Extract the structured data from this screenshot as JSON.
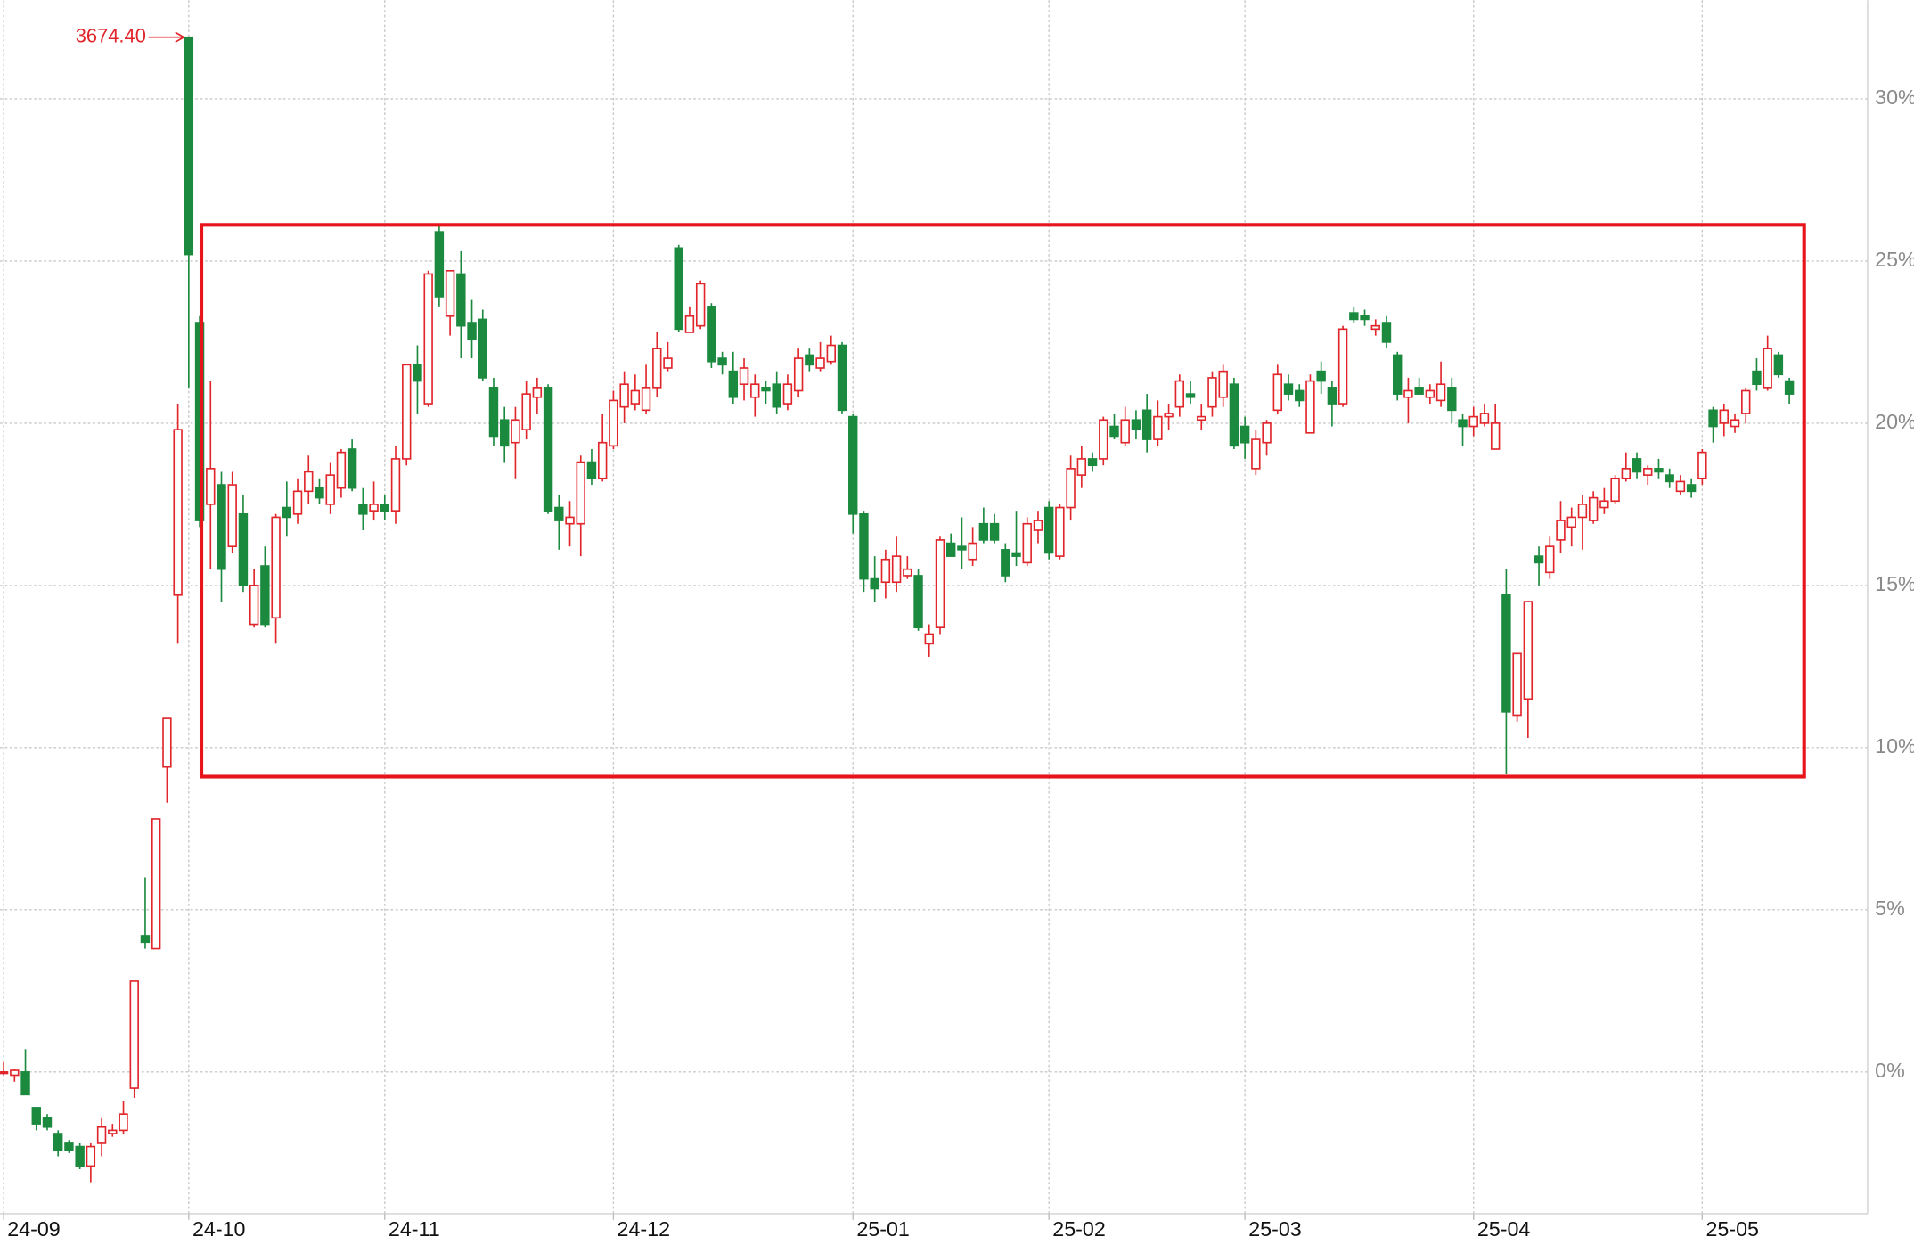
{
  "chart_data": {
    "type": "candlestick",
    "up_color": "#e0262b",
    "down_color": "#1b8a3e",
    "grid": true,
    "ylim": [
      -4.37,
      33.04
    ],
    "yticks": [
      {
        "value": 0,
        "label": "0%"
      },
      {
        "value": 5,
        "label": "5%"
      },
      {
        "value": 10,
        "label": "10%"
      },
      {
        "value": 15,
        "label": "15%"
      },
      {
        "value": 20,
        "label": "20%"
      },
      {
        "value": 25,
        "label": "25%"
      },
      {
        "value": 30,
        "label": "30%"
      }
    ],
    "annotations": [
      {
        "text": "3674.40"
      }
    ],
    "categories": [
      "24-09",
      null,
      null,
      null,
      null,
      null,
      null,
      null,
      null,
      null,
      null,
      null,
      null,
      null,
      null,
      null,
      null,
      "24-10",
      null,
      null,
      null,
      null,
      null,
      null,
      null,
      null,
      null,
      null,
      null,
      null,
      null,
      null,
      null,
      null,
      null,
      "24-11",
      null,
      null,
      null,
      null,
      null,
      null,
      null,
      null,
      null,
      null,
      null,
      null,
      null,
      null,
      null,
      null,
      null,
      null,
      null,
      null,
      "24-12",
      null,
      null,
      null,
      null,
      null,
      null,
      null,
      null,
      null,
      null,
      null,
      null,
      null,
      null,
      null,
      null,
      null,
      null,
      null,
      null,
      null,
      "25-01",
      null,
      null,
      null,
      null,
      null,
      null,
      null,
      null,
      null,
      null,
      null,
      null,
      null,
      null,
      null,
      null,
      null,
      "25-02",
      null,
      null,
      null,
      null,
      null,
      null,
      null,
      null,
      null,
      null,
      null,
      null,
      null,
      null,
      null,
      null,
      null,
      "25-03",
      null,
      null,
      null,
      null,
      null,
      null,
      null,
      null,
      null,
      null,
      null,
      null,
      null,
      null,
      null,
      null,
      null,
      null,
      null,
      null,
      "25-04",
      null,
      null,
      null,
      null,
      null,
      null,
      null,
      null,
      null,
      null,
      null,
      null,
      null,
      null,
      null,
      null,
      null,
      null,
      null,
      null,
      "25-05",
      null,
      null,
      null,
      null,
      null,
      null,
      null,
      null
    ],
    "open": [
      0,
      -0.1,
      0,
      -1.1,
      -1.4,
      -1.9,
      -2.2,
      -2.3,
      -2.9,
      -2.2,
      -1.9,
      -1.8,
      -0.5,
      4.2,
      3.8,
      9.4,
      14.7,
      31.9,
      23.1,
      17.5,
      18.1,
      16.2,
      17.2,
      13.8,
      15.6,
      14.0,
      17.4,
      17.2,
      17.9,
      18.0,
      17.5,
      18.0,
      19.2,
      17.5,
      17.3,
      17.5,
      17.3,
      18.9,
      21.8,
      20.6,
      25.9,
      23.3,
      24.6,
      23.1,
      23.2,
      21.1,
      20.1,
      19.4,
      19.8,
      20.8,
      21.1,
      17.4,
      16.9,
      16.9,
      18.8,
      18.3,
      19.3,
      20.5,
      20.6,
      20.4,
      21.1,
      21.7,
      25.4,
      22.8,
      23.0,
      23.6,
      22.0,
      21.6,
      21.2,
      20.8,
      21.1,
      21.2,
      20.6,
      21.0,
      22.1,
      21.7,
      21.9,
      22.4,
      20.2,
      17.2,
      15.2,
      15.1,
      15.1,
      15.3,
      15.3,
      13.2,
      13.7,
      16.3,
      16.2,
      15.8,
      16.9,
      16.9,
      16.1,
      16.0,
      15.7,
      16.7,
      17.4,
      15.9,
      17.4,
      18.4,
      18.9,
      18.9,
      19.9,
      19.4,
      20.1,
      20.4,
      19.5,
      20.2,
      20.5,
      20.9,
      20.1,
      20.5,
      20.8,
      21.2,
      19.9,
      18.6,
      19.4,
      20.4,
      21.2,
      21.0,
      19.7,
      21.6,
      21.1,
      20.6,
      23.4,
      23.3,
      22.9,
      23.1,
      22.1,
      20.8,
      21.1,
      20.8,
      20.7,
      21.1,
      20.1,
      19.9,
      20.0,
      19.2,
      14.7,
      11.0,
      11.5,
      15.9,
      15.4,
      16.4,
      16.8,
      17.1,
      17.0,
      17.4,
      17.6,
      18.3,
      18.9,
      18.4,
      18.6,
      18.4,
      17.9,
      18.1,
      18.3,
      20.4,
      20.0,
      19.9,
      20.3,
      21.6,
      21.1,
      22.1,
      21.3
    ],
    "high": [
      0.3,
      0.1,
      0.7,
      -1.1,
      -1.3,
      -1.8,
      -2.1,
      -2.2,
      -2.2,
      -1.4,
      -1.6,
      -0.9,
      2.8,
      6.0,
      7.8,
      10.9,
      20.6,
      31.9,
      23.3,
      21.3,
      18.5,
      18.5,
      17.8,
      15.5,
      16.2,
      17.2,
      18.2,
      18.3,
      19.0,
      18.3,
      18.8,
      19.2,
      19.5,
      18.0,
      18.2,
      17.8,
      19.3,
      21.8,
      22.4,
      24.7,
      26.1,
      24.7,
      25.3,
      23.8,
      23.5,
      21.4,
      20.5,
      20.5,
      21.3,
      21.4,
      21.2,
      17.8,
      17.6,
      19.0,
      19.2,
      20.3,
      21.0,
      21.6,
      21.5,
      21.8,
      22.8,
      22.5,
      25.5,
      23.6,
      24.4,
      23.7,
      22.2,
      22.2,
      22.0,
      21.5,
      21.3,
      21.6,
      21.5,
      22.3,
      22.3,
      22.5,
      22.7,
      22.5,
      20.3,
      17.3,
      15.9,
      16.1,
      16.5,
      15.9,
      15.5,
      13.8,
      16.5,
      16.6,
      17.1,
      16.8,
      17.4,
      17.2,
      16.3,
      17.3,
      17.1,
      17.3,
      17.6,
      17.5,
      19.0,
      19.3,
      19.1,
      20.2,
      20.3,
      20.5,
      20.4,
      20.9,
      20.7,
      20.6,
      21.5,
      21.3,
      20.6,
      21.6,
      21.8,
      21.4,
      20.2,
      19.8,
      20.1,
      21.8,
      21.5,
      21.2,
      21.5,
      21.9,
      21.3,
      23.0,
      23.6,
      23.5,
      23.2,
      23.3,
      22.2,
      21.4,
      21.4,
      21.2,
      21.9,
      21.4,
      20.3,
      20.5,
      20.6,
      20.6,
      15.5,
      12.9,
      14.5,
      16.2,
      16.5,
      17.6,
      17.4,
      17.8,
      17.9,
      18.0,
      18.4,
      19.1,
      19.1,
      18.7,
      18.9,
      18.6,
      18.4,
      18.3,
      19.2,
      20.5,
      20.6,
      20.3,
      21.1,
      22.0,
      22.7,
      22.2,
      21.4
    ],
    "low": [
      -0.1,
      -0.3,
      -0.7,
      -1.8,
      -1.8,
      -2.6,
      -2.5,
      -3.0,
      -3.4,
      -2.6,
      -2.0,
      -1.9,
      -0.8,
      3.8,
      3.8,
      8.3,
      13.2,
      21.1,
      16.8,
      15.5,
      14.5,
      16.0,
      14.8,
      13.7,
      13.7,
      13.2,
      16.5,
      16.9,
      17.5,
      17.5,
      17.2,
      17.7,
      17.9,
      16.7,
      17.0,
      17.0,
      16.9,
      18.7,
      20.3,
      20.5,
      23.6,
      22.7,
      22.0,
      22.0,
      21.3,
      19.3,
      18.8,
      18.3,
      19.5,
      20.3,
      17.2,
      16.1,
      16.2,
      15.9,
      18.1,
      18.2,
      19.2,
      20.0,
      20.4,
      20.3,
      20.8,
      21.6,
      22.8,
      22.8,
      22.9,
      21.7,
      21.5,
      20.6,
      20.7,
      20.2,
      20.6,
      20.3,
      20.4,
      20.8,
      21.6,
      21.6,
      21.8,
      20.3,
      16.6,
      14.8,
      14.5,
      14.6,
      14.8,
      15.2,
      13.6,
      12.8,
      13.5,
      15.9,
      15.5,
      15.6,
      16.3,
      16.3,
      15.1,
      15.6,
      15.6,
      16.3,
      15.8,
      15.8,
      17.0,
      18.0,
      18.5,
      18.7,
      19.5,
      19.3,
      19.5,
      19.1,
      19.3,
      19.8,
      20.2,
      20.6,
      19.8,
      20.2,
      20.5,
      19.2,
      18.9,
      18.4,
      19.0,
      20.3,
      20.7,
      20.5,
      19.7,
      20.9,
      19.9,
      20.5,
      23.1,
      23.0,
      22.7,
      22.3,
      20.7,
      20.0,
      20.9,
      20.6,
      20.5,
      20.0,
      19.3,
      19.6,
      19.9,
      19.2,
      9.2,
      10.8,
      10.3,
      15.0,
      15.2,
      16.0,
      16.2,
      16.1,
      16.9,
      17.2,
      17.5,
      18.2,
      18.3,
      18.1,
      18.3,
      18.0,
      17.8,
      17.7,
      18.1,
      19.4,
      19.6,
      19.7,
      20.0,
      21.0,
      21.0,
      21.4,
      20.6
    ],
    "close": [
      0,
      0.05,
      -0.7,
      -1.6,
      -1.7,
      -2.4,
      -2.4,
      -2.9,
      -2.3,
      -1.7,
      -1.8,
      -1.3,
      2.8,
      4.0,
      7.8,
      10.9,
      19.8,
      25.2,
      17.0,
      18.6,
      15.5,
      18.1,
      15.0,
      15.0,
      13.8,
      17.1,
      17.1,
      17.9,
      18.5,
      17.7,
      18.4,
      19.1,
      18.0,
      17.2,
      17.5,
      17.3,
      18.9,
      21.8,
      21.3,
      24.6,
      23.9,
      24.7,
      23.0,
      22.6,
      21.4,
      19.6,
      19.3,
      20.1,
      20.9,
      21.1,
      17.3,
      17.0,
      17.1,
      18.8,
      18.3,
      19.4,
      20.7,
      21.2,
      21.0,
      21.1,
      22.3,
      22.0,
      22.9,
      23.3,
      24.3,
      21.9,
      21.8,
      20.8,
      21.7,
      21.2,
      21.0,
      20.5,
      21.2,
      22.0,
      21.8,
      22.0,
      22.4,
      20.4,
      17.2,
      15.2,
      14.9,
      15.8,
      15.9,
      15.5,
      13.7,
      13.5,
      16.4,
      15.9,
      16.1,
      16.3,
      16.4,
      16.4,
      15.3,
      15.9,
      16.9,
      17.0,
      16.0,
      17.4,
      18.6,
      18.9,
      18.7,
      20.1,
      19.6,
      20.1,
      19.8,
      19.5,
      20.2,
      20.3,
      21.3,
      20.8,
      20.2,
      21.4,
      21.6,
      19.3,
      19.4,
      19.5,
      20.0,
      21.5,
      20.9,
      20.7,
      21.3,
      21.3,
      20.6,
      22.9,
      23.2,
      23.2,
      23.0,
      22.5,
      20.9,
      21.0,
      20.9,
      21.0,
      21.2,
      20.4,
      19.9,
      20.2,
      20.3,
      20.0,
      11.1,
      12.9,
      14.5,
      15.7,
      16.2,
      17.0,
      17.1,
      17.5,
      17.7,
      17.6,
      18.3,
      18.6,
      18.5,
      18.6,
      18.5,
      18.2,
      18.2,
      17.9,
      19.1,
      19.9,
      20.4,
      20.1,
      21.0,
      21.2,
      22.3,
      21.5,
      20.9
    ]
  }
}
